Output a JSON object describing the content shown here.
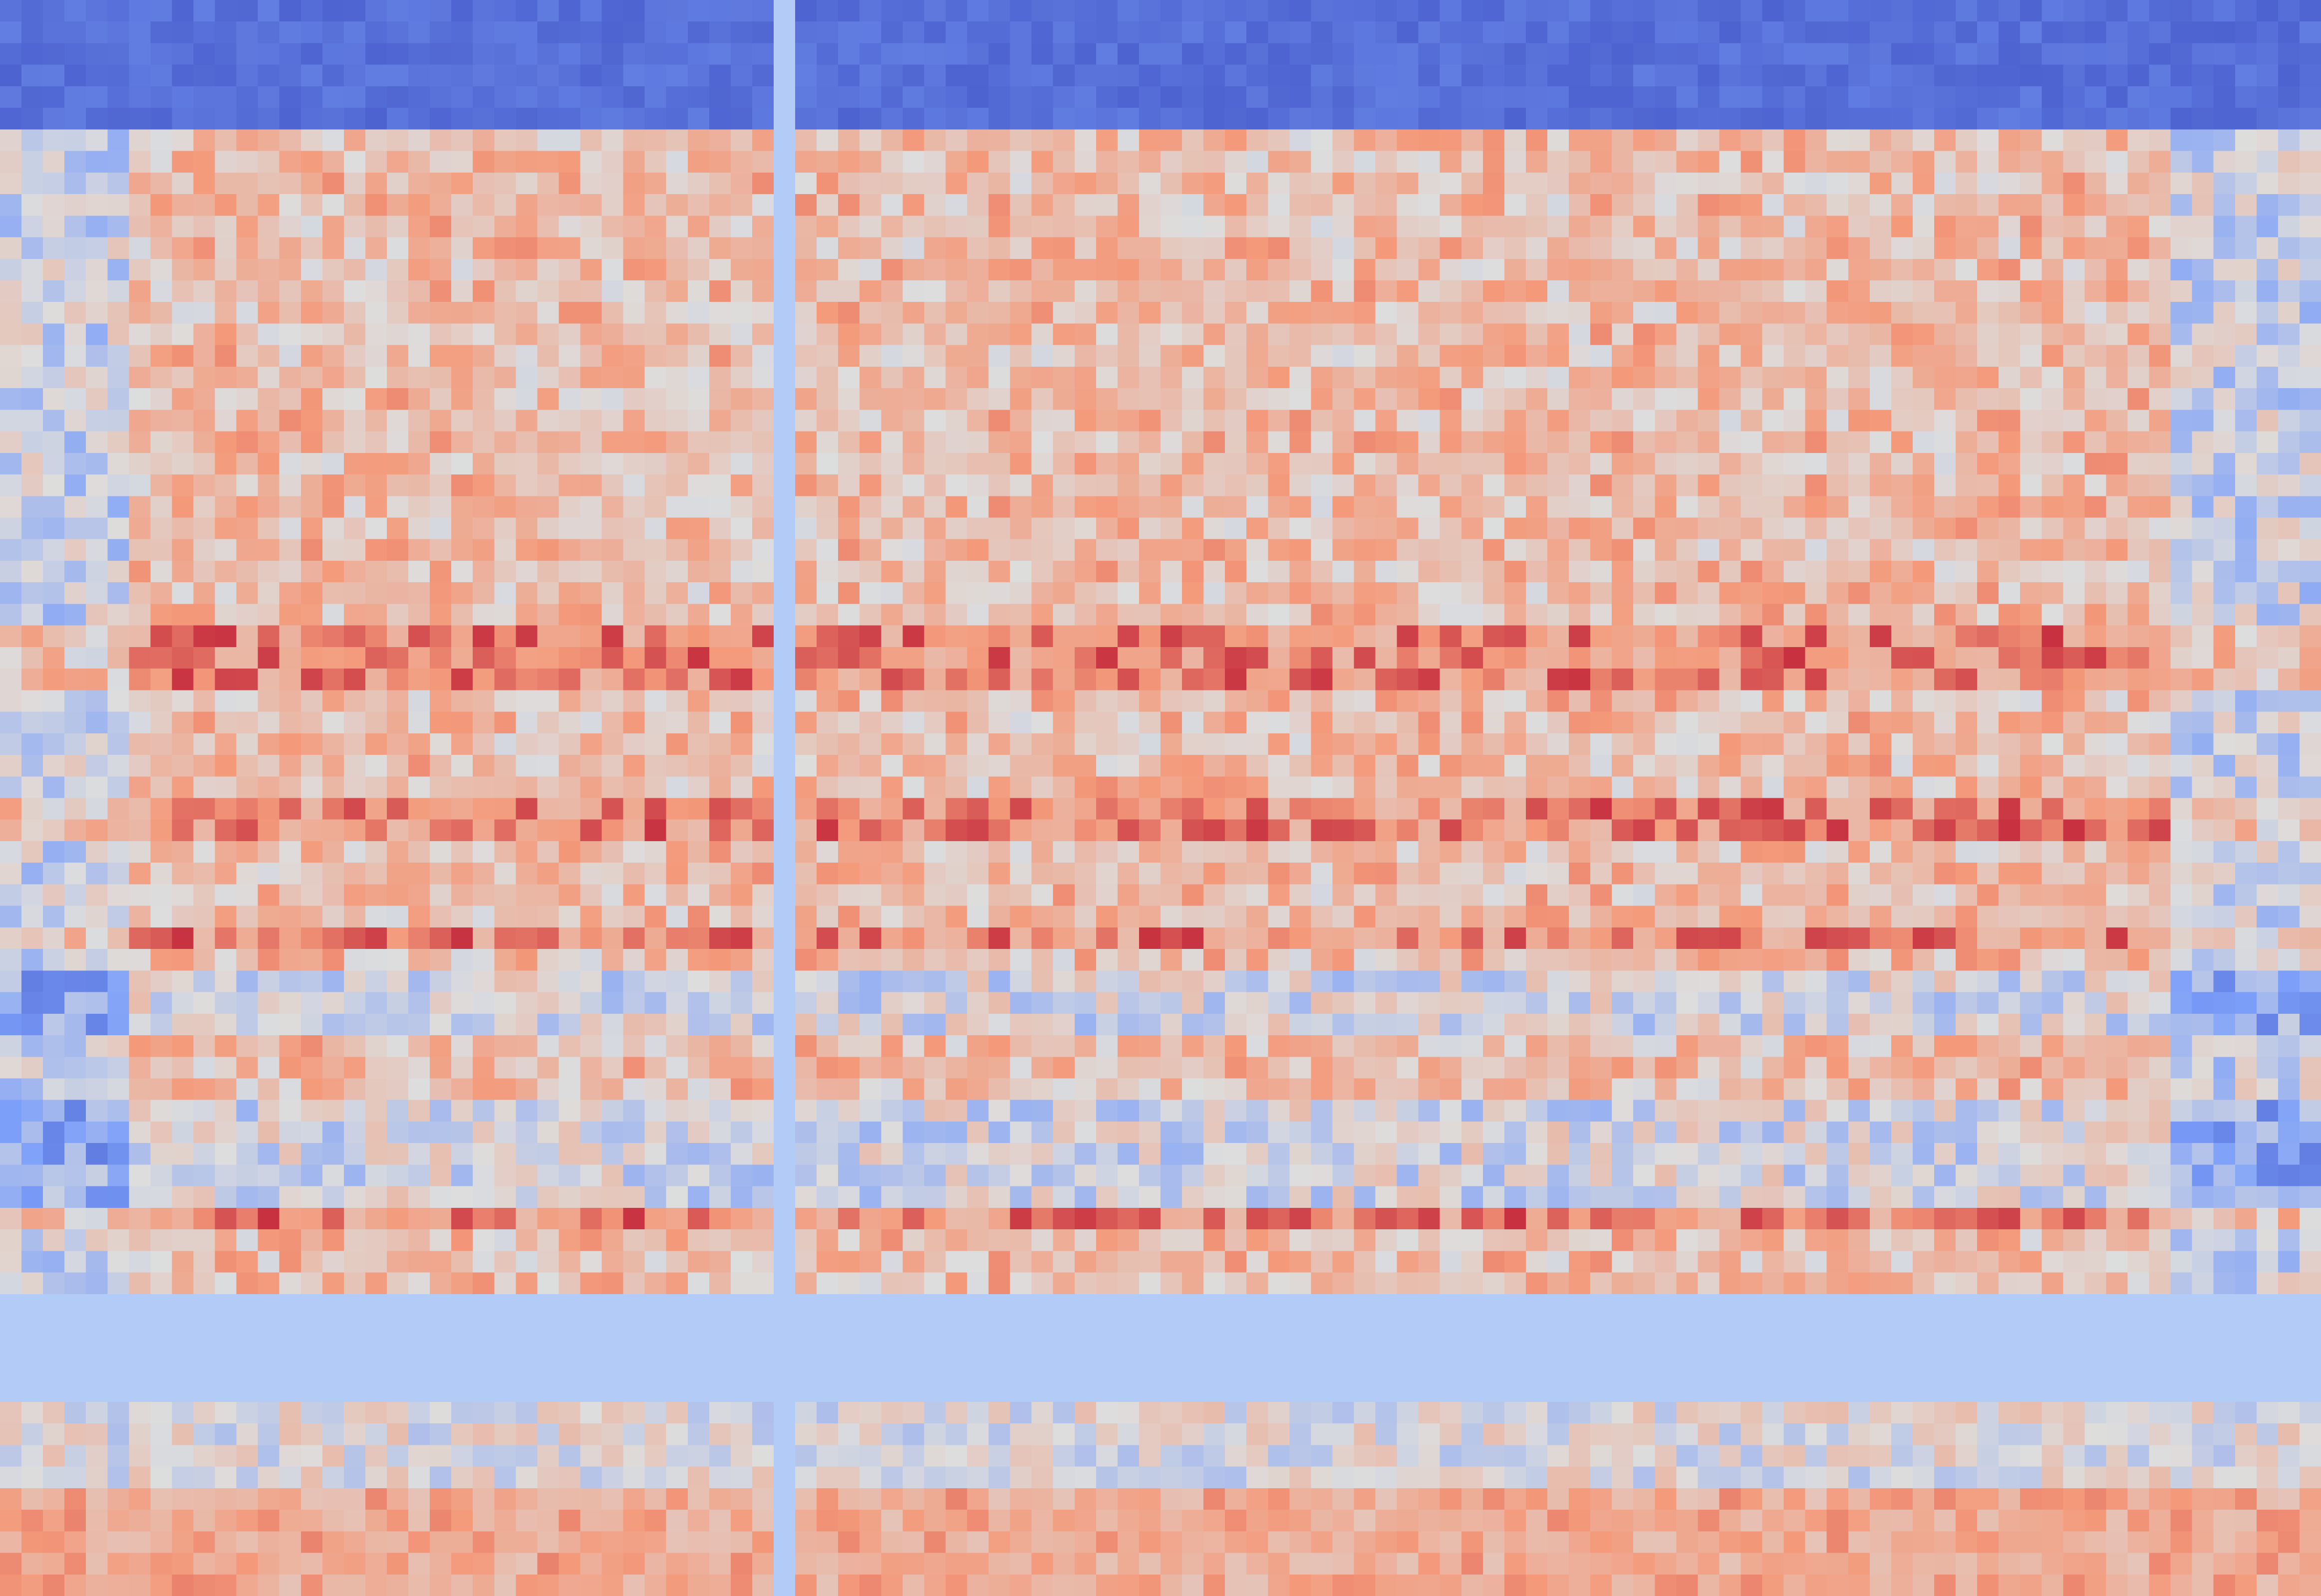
{
  "chart_data": {
    "type": "heatmap",
    "title": "",
    "xlabel": "",
    "ylabel": "",
    "colormap": "coolwarm",
    "color_range": [
      -1,
      1
    ],
    "grid": false,
    "n_cols": 108,
    "n_rows": 74,
    "gap_color": "#b3cbf7",
    "gap_columns": [
      36
    ],
    "gap_rows": [
      60,
      61,
      62,
      63,
      64
    ],
    "row_bands": [
      {
        "rows": [
          0,
          5
        ],
        "value": -0.78,
        "noise": 0.08
      },
      {
        "rows": [
          6,
          59
        ],
        "value": 0.25,
        "noise": 0.3
      },
      {
        "rows": [
          65,
          68
        ],
        "value": 0.0,
        "noise": 0.25
      },
      {
        "rows": [
          69,
          73
        ],
        "value": 0.38,
        "noise": 0.2
      }
    ],
    "hot_rows": [
      29,
      30,
      31,
      37,
      38,
      43,
      56
    ],
    "cool_rows": [
      45,
      46,
      47,
      51,
      52,
      53,
      54,
      55
    ],
    "seed": 7
  }
}
